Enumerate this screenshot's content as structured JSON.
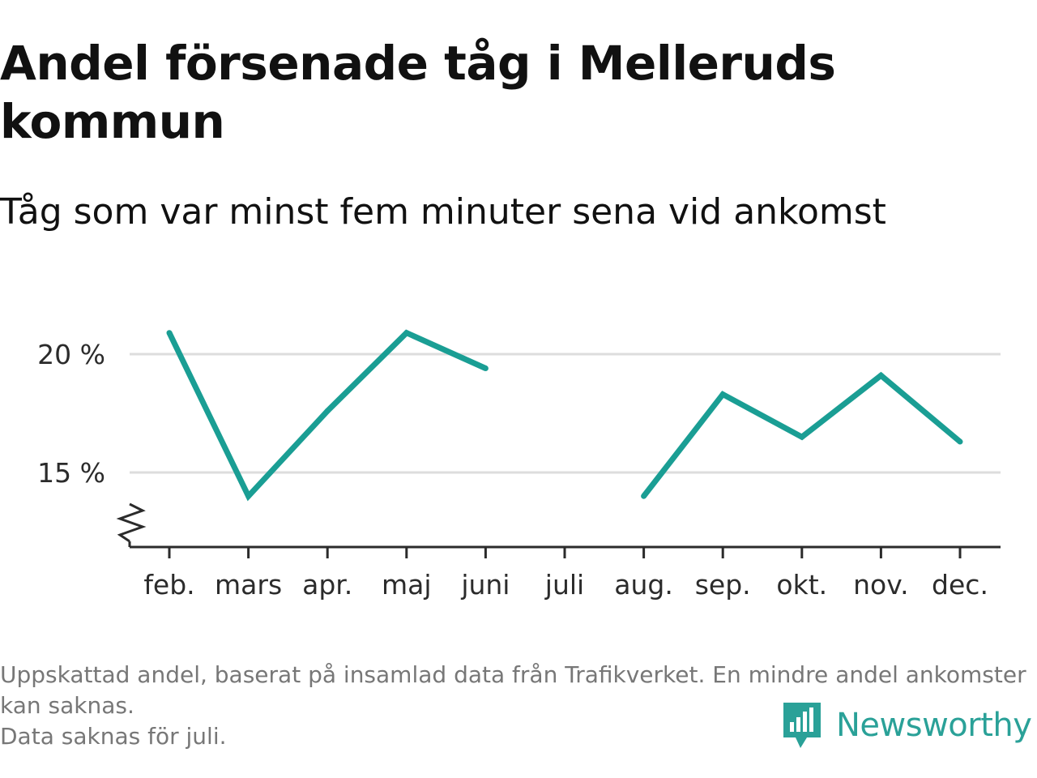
{
  "title": "Andel försenade tåg i Melleruds kommun",
  "subtitle": "Tåg som var minst fem minuter sena vid ankomst",
  "chart_data": {
    "type": "line",
    "categories": [
      "feb.",
      "mars",
      "apr.",
      "maj",
      "juni",
      "juli",
      "aug.",
      "sep.",
      "okt.",
      "nov.",
      "dec."
    ],
    "series": [
      {
        "values": [
          20.9,
          14.0,
          17.6,
          20.9,
          19.4,
          null,
          14.0,
          18.3,
          16.5,
          19.1,
          16.3
        ]
      }
    ],
    "y_ticks": [
      15,
      20
    ],
    "y_tick_labels": [
      "15 %",
      "20 %"
    ],
    "ylim": [
      12,
      22
    ],
    "y_axis_break": true,
    "grid": true,
    "line_color": "#1a9e94",
    "title": "Andel försenade tåg i Melleruds kommun",
    "subtitle": "Tåg som var minst fem minuter sena vid ankomst",
    "xlabel": "",
    "ylabel": ""
  },
  "footer": {
    "line1": "Uppskattad andel, baserat på insamlad data från Trafikverket. En mindre andel ankomster kan saknas.",
    "line2": "Data saknas för juli."
  },
  "brand": {
    "name": "Newsworthy",
    "logo_icon": "newsworthy-chart-logo-icon",
    "color": "#2aa198"
  }
}
